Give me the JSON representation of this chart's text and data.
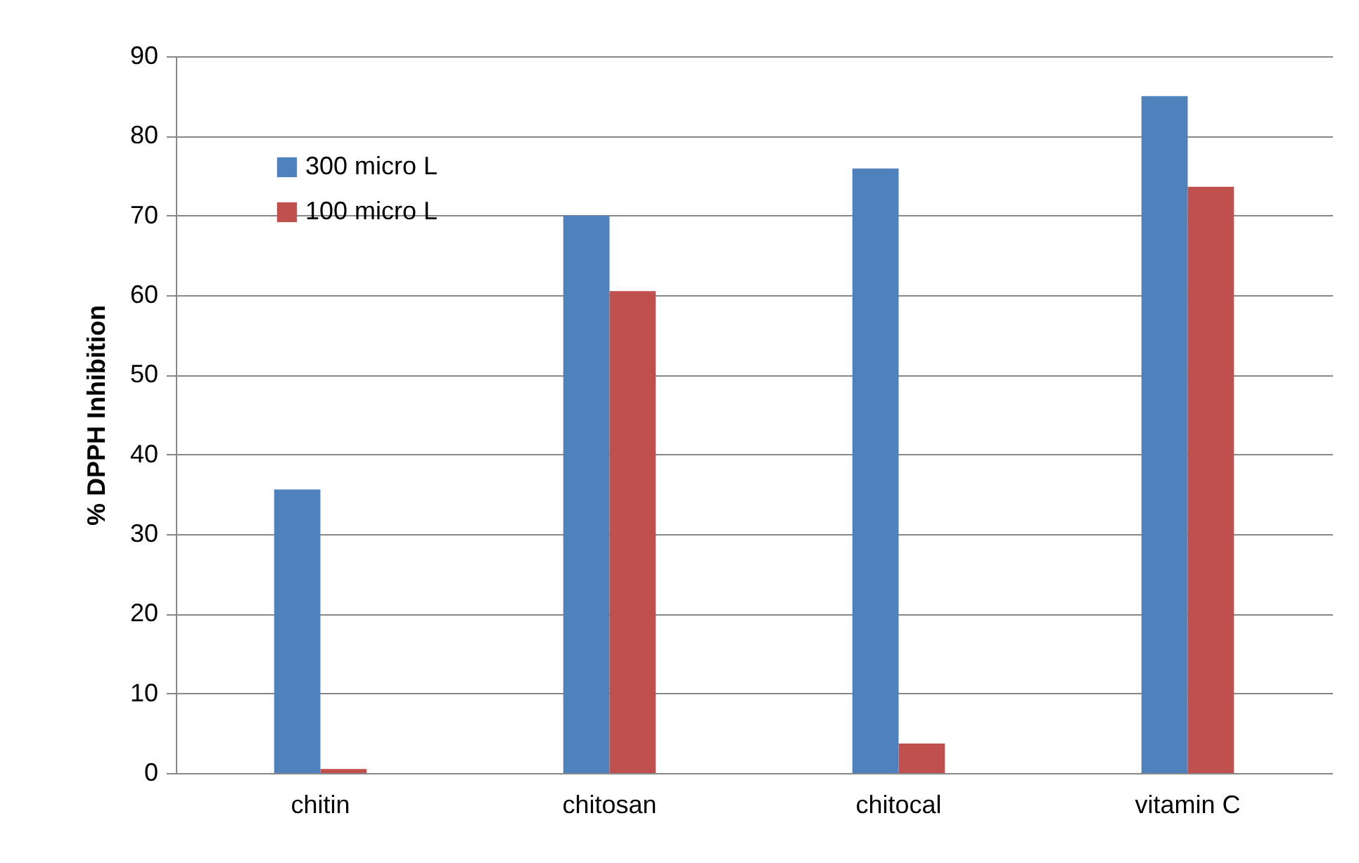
{
  "chart_data": {
    "type": "bar",
    "ylabel": "% DPPH Inhibition",
    "categories": [
      "chitin",
      "chitosan",
      "chitocal",
      "vitamin C"
    ],
    "series": [
      {
        "name": "300 micro L",
        "color": "#4f81bd",
        "values": [
          35.6,
          70.0,
          75.9,
          85.0
        ]
      },
      {
        "name": "100 micro L",
        "color": "#c0504d",
        "values": [
          0.5,
          60.5,
          3.7,
          73.6
        ]
      }
    ],
    "ylim": [
      0,
      90
    ],
    "yticks": [
      0,
      10,
      20,
      30,
      40,
      50,
      60,
      70,
      80,
      90
    ],
    "grid": "y",
    "legend": "top left"
  }
}
